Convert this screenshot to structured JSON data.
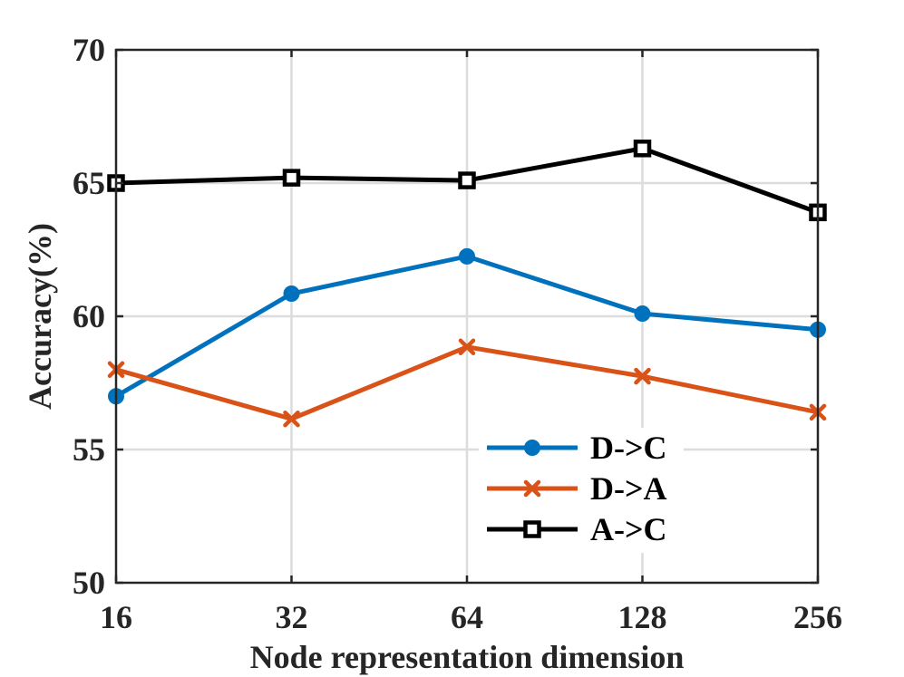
{
  "chart_data": {
    "type": "line",
    "title": "",
    "xlabel": "Node representation dimension",
    "ylabel": "Accuracy(%)",
    "categories": [
      "16",
      "32",
      "64",
      "128",
      "256"
    ],
    "ylim": [
      50,
      70
    ],
    "yticks": [
      50,
      55,
      60,
      65,
      70
    ],
    "grid": true,
    "legend_position": "lower-right",
    "series": [
      {
        "name": "D->C",
        "color": "#0072BD",
        "marker": "circle",
        "values": [
          57.0,
          60.85,
          62.25,
          60.1,
          59.5
        ]
      },
      {
        "name": "D->A",
        "color": "#D95319",
        "marker": "x",
        "values": [
          58.0,
          56.15,
          58.85,
          57.75,
          56.4
        ]
      },
      {
        "name": "A->C",
        "color": "#000000",
        "marker": "square",
        "values": [
          65.0,
          65.2,
          65.1,
          66.3,
          63.9
        ]
      }
    ]
  }
}
